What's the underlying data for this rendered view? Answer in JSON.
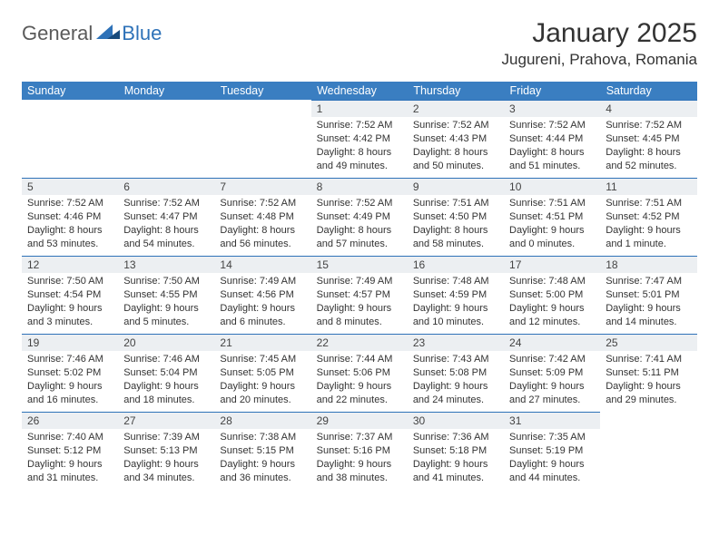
{
  "brand": {
    "general": "General",
    "blue": "Blue"
  },
  "colors": {
    "header_bg": "#3a7ec1",
    "header_text": "#ffffff",
    "daynum_bg": "#eceff2",
    "daynum_border": "#2e72b8",
    "body_text": "#333333",
    "logo_gray": "#5a5a5a",
    "logo_blue": "#2e72b8",
    "page_bg": "#ffffff"
  },
  "title": "January 2025",
  "location": "Jugureni, Prahova, Romania",
  "weekdays": [
    "Sunday",
    "Monday",
    "Tuesday",
    "Wednesday",
    "Thursday",
    "Friday",
    "Saturday"
  ],
  "weeks": [
    [
      {
        "empty": true
      },
      {
        "empty": true
      },
      {
        "empty": true
      },
      {
        "day": "1",
        "sunrise": "Sunrise: 7:52 AM",
        "sunset": "Sunset: 4:42 PM",
        "dl1": "Daylight: 8 hours",
        "dl2": "and 49 minutes."
      },
      {
        "day": "2",
        "sunrise": "Sunrise: 7:52 AM",
        "sunset": "Sunset: 4:43 PM",
        "dl1": "Daylight: 8 hours",
        "dl2": "and 50 minutes."
      },
      {
        "day": "3",
        "sunrise": "Sunrise: 7:52 AM",
        "sunset": "Sunset: 4:44 PM",
        "dl1": "Daylight: 8 hours",
        "dl2": "and 51 minutes."
      },
      {
        "day": "4",
        "sunrise": "Sunrise: 7:52 AM",
        "sunset": "Sunset: 4:45 PM",
        "dl1": "Daylight: 8 hours",
        "dl2": "and 52 minutes."
      }
    ],
    [
      {
        "day": "5",
        "sunrise": "Sunrise: 7:52 AM",
        "sunset": "Sunset: 4:46 PM",
        "dl1": "Daylight: 8 hours",
        "dl2": "and 53 minutes."
      },
      {
        "day": "6",
        "sunrise": "Sunrise: 7:52 AM",
        "sunset": "Sunset: 4:47 PM",
        "dl1": "Daylight: 8 hours",
        "dl2": "and 54 minutes."
      },
      {
        "day": "7",
        "sunrise": "Sunrise: 7:52 AM",
        "sunset": "Sunset: 4:48 PM",
        "dl1": "Daylight: 8 hours",
        "dl2": "and 56 minutes."
      },
      {
        "day": "8",
        "sunrise": "Sunrise: 7:52 AM",
        "sunset": "Sunset: 4:49 PM",
        "dl1": "Daylight: 8 hours",
        "dl2": "and 57 minutes."
      },
      {
        "day": "9",
        "sunrise": "Sunrise: 7:51 AM",
        "sunset": "Sunset: 4:50 PM",
        "dl1": "Daylight: 8 hours",
        "dl2": "and 58 minutes."
      },
      {
        "day": "10",
        "sunrise": "Sunrise: 7:51 AM",
        "sunset": "Sunset: 4:51 PM",
        "dl1": "Daylight: 9 hours",
        "dl2": "and 0 minutes."
      },
      {
        "day": "11",
        "sunrise": "Sunrise: 7:51 AM",
        "sunset": "Sunset: 4:52 PM",
        "dl1": "Daylight: 9 hours",
        "dl2": "and 1 minute."
      }
    ],
    [
      {
        "day": "12",
        "sunrise": "Sunrise: 7:50 AM",
        "sunset": "Sunset: 4:54 PM",
        "dl1": "Daylight: 9 hours",
        "dl2": "and 3 minutes."
      },
      {
        "day": "13",
        "sunrise": "Sunrise: 7:50 AM",
        "sunset": "Sunset: 4:55 PM",
        "dl1": "Daylight: 9 hours",
        "dl2": "and 5 minutes."
      },
      {
        "day": "14",
        "sunrise": "Sunrise: 7:49 AM",
        "sunset": "Sunset: 4:56 PM",
        "dl1": "Daylight: 9 hours",
        "dl2": "and 6 minutes."
      },
      {
        "day": "15",
        "sunrise": "Sunrise: 7:49 AM",
        "sunset": "Sunset: 4:57 PM",
        "dl1": "Daylight: 9 hours",
        "dl2": "and 8 minutes."
      },
      {
        "day": "16",
        "sunrise": "Sunrise: 7:48 AM",
        "sunset": "Sunset: 4:59 PM",
        "dl1": "Daylight: 9 hours",
        "dl2": "and 10 minutes."
      },
      {
        "day": "17",
        "sunrise": "Sunrise: 7:48 AM",
        "sunset": "Sunset: 5:00 PM",
        "dl1": "Daylight: 9 hours",
        "dl2": "and 12 minutes."
      },
      {
        "day": "18",
        "sunrise": "Sunrise: 7:47 AM",
        "sunset": "Sunset: 5:01 PM",
        "dl1": "Daylight: 9 hours",
        "dl2": "and 14 minutes."
      }
    ],
    [
      {
        "day": "19",
        "sunrise": "Sunrise: 7:46 AM",
        "sunset": "Sunset: 5:02 PM",
        "dl1": "Daylight: 9 hours",
        "dl2": "and 16 minutes."
      },
      {
        "day": "20",
        "sunrise": "Sunrise: 7:46 AM",
        "sunset": "Sunset: 5:04 PM",
        "dl1": "Daylight: 9 hours",
        "dl2": "and 18 minutes."
      },
      {
        "day": "21",
        "sunrise": "Sunrise: 7:45 AM",
        "sunset": "Sunset: 5:05 PM",
        "dl1": "Daylight: 9 hours",
        "dl2": "and 20 minutes."
      },
      {
        "day": "22",
        "sunrise": "Sunrise: 7:44 AM",
        "sunset": "Sunset: 5:06 PM",
        "dl1": "Daylight: 9 hours",
        "dl2": "and 22 minutes."
      },
      {
        "day": "23",
        "sunrise": "Sunrise: 7:43 AM",
        "sunset": "Sunset: 5:08 PM",
        "dl1": "Daylight: 9 hours",
        "dl2": "and 24 minutes."
      },
      {
        "day": "24",
        "sunrise": "Sunrise: 7:42 AM",
        "sunset": "Sunset: 5:09 PM",
        "dl1": "Daylight: 9 hours",
        "dl2": "and 27 minutes."
      },
      {
        "day": "25",
        "sunrise": "Sunrise: 7:41 AM",
        "sunset": "Sunset: 5:11 PM",
        "dl1": "Daylight: 9 hours",
        "dl2": "and 29 minutes."
      }
    ],
    [
      {
        "day": "26",
        "sunrise": "Sunrise: 7:40 AM",
        "sunset": "Sunset: 5:12 PM",
        "dl1": "Daylight: 9 hours",
        "dl2": "and 31 minutes."
      },
      {
        "day": "27",
        "sunrise": "Sunrise: 7:39 AM",
        "sunset": "Sunset: 5:13 PM",
        "dl1": "Daylight: 9 hours",
        "dl2": "and 34 minutes."
      },
      {
        "day": "28",
        "sunrise": "Sunrise: 7:38 AM",
        "sunset": "Sunset: 5:15 PM",
        "dl1": "Daylight: 9 hours",
        "dl2": "and 36 minutes."
      },
      {
        "day": "29",
        "sunrise": "Sunrise: 7:37 AM",
        "sunset": "Sunset: 5:16 PM",
        "dl1": "Daylight: 9 hours",
        "dl2": "and 38 minutes."
      },
      {
        "day": "30",
        "sunrise": "Sunrise: 7:36 AM",
        "sunset": "Sunset: 5:18 PM",
        "dl1": "Daylight: 9 hours",
        "dl2": "and 41 minutes."
      },
      {
        "day": "31",
        "sunrise": "Sunrise: 7:35 AM",
        "sunset": "Sunset: 5:19 PM",
        "dl1": "Daylight: 9 hours",
        "dl2": "and 44 minutes."
      },
      {
        "empty": true
      }
    ]
  ]
}
